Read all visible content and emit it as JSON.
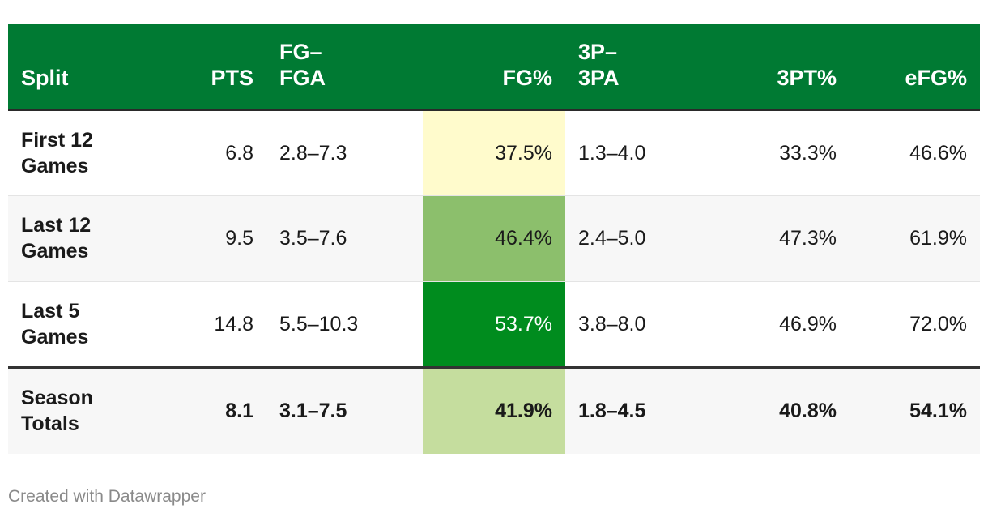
{
  "chart_data": {
    "type": "table",
    "columns": [
      "Split",
      "PTS",
      "FG–\nFGA",
      "FG%",
      "3P–\n3PA",
      "3PT%",
      "eFG%"
    ],
    "rows": [
      {
        "split": "First 12 Games",
        "pts": "6.8",
        "fg_fga": "2.8–7.3",
        "fg_pct": "37.5%",
        "fg_pct_value": 37.5,
        "tp_tpa": "1.3–4.0",
        "tpt_pct": "33.3%",
        "efg_pct": "46.6%",
        "fg_color": "#fffbcc",
        "fg_text_color": "#1a1a1a"
      },
      {
        "split": "Last 12 Games",
        "pts": "9.5",
        "fg_fga": "3.5–7.6",
        "fg_pct": "46.4%",
        "fg_pct_value": 46.4,
        "tp_tpa": "2.4–5.0",
        "tpt_pct": "47.3%",
        "efg_pct": "61.9%",
        "fg_color": "#8cbf6c",
        "fg_text_color": "#1a1a1a"
      },
      {
        "split": "Last 5 Games",
        "pts": "14.8",
        "fg_fga": "5.5–10.3",
        "fg_pct": "53.7%",
        "fg_pct_value": 53.7,
        "tp_tpa": "3.8–8.0",
        "tpt_pct": "46.9%",
        "efg_pct": "72.0%",
        "fg_color": "#008c1e",
        "fg_text_color": "#ffffff"
      },
      {
        "split": "Season Totals",
        "pts": "8.1",
        "fg_fga": "3.1–7.5",
        "fg_pct": "41.9%",
        "fg_pct_value": 41.9,
        "tp_tpa": "1.8–4.5",
        "tpt_pct": "40.8%",
        "efg_pct": "54.1%",
        "fg_color": "#c5dd9e",
        "fg_text_color": "#1a1a1a"
      }
    ],
    "header_color": "#007a33"
  },
  "footer": {
    "credit": "Created with Datawrapper"
  }
}
